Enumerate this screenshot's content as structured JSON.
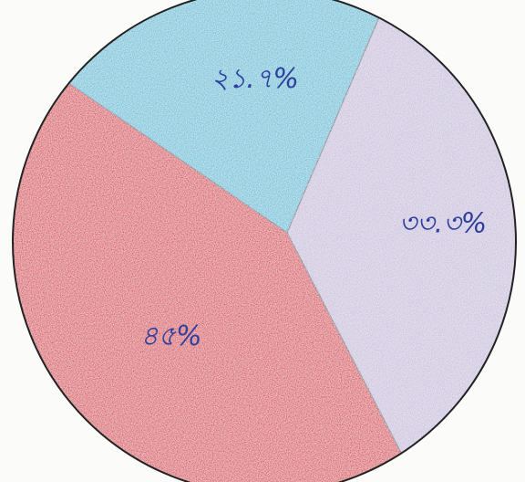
{
  "chart_data": {
    "type": "pie",
    "categories": [
      null,
      null,
      null
    ],
    "values": [
      21.7,
      33.3,
      45
    ],
    "value_labels": [
      "২১.৭%",
      "৩৩.৩%",
      "৪৫%"
    ],
    "colors": [
      "#5cbfd8",
      "#c8bedc",
      "#d8404f"
    ]
  }
}
